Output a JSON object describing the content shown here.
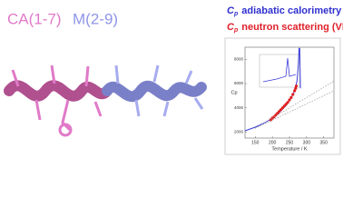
{
  "title_parts": [
    "CA(1-7)",
    "M(2-9)"
  ],
  "legend": [
    {
      "symbol": "C",
      "sub": "p",
      "text": "adiabatic calorimetry",
      "color": "#2f2fd0"
    },
    {
      "symbol": "C",
      "sub": "p",
      "text": "neutron scattering (VDOS)",
      "color": "#e0202a"
    }
  ],
  "chart_data": {
    "type": "line",
    "xlabel": "Temperature / K",
    "ylabel": "Cp",
    "xlim": [
      120,
      380
    ],
    "xticks": [
      150,
      200,
      250,
      300,
      350
    ],
    "ylim": [
      1500,
      9000
    ],
    "yticks": [
      2000,
      4000,
      6000,
      8000
    ],
    "series": [
      {
        "color": "#3a3ad8",
        "style": "line",
        "x": [
          120,
          150,
          180,
          200,
          220,
          240,
          255,
          265,
          272,
          276,
          278,
          280,
          282
        ],
        "values": [
          2100,
          2400,
          2800,
          3150,
          3600,
          4200,
          4800,
          5400,
          6200,
          7600,
          8900,
          8900,
          5600
        ]
      },
      {
        "color": "#e02020",
        "style": "points",
        "x": [
          195,
          200,
          205,
          210,
          215,
          220,
          225,
          230,
          235,
          240,
          245,
          250,
          255,
          260,
          265,
          268,
          270
        ],
        "values": [
          3000,
          3150,
          3250,
          3400,
          3550,
          3700,
          3850,
          4000,
          4150,
          4300,
          4450,
          4650,
          4850,
          5100,
          5400,
          5600,
          5800
        ]
      },
      {
        "color": "#888888",
        "style": "dashed",
        "x": [
          150,
          380
        ],
        "values": [
          2300,
          6200
        ]
      },
      {
        "color": "#888888",
        "style": "dashed",
        "x": [
          150,
          380
        ],
        "values": [
          2300,
          5400
        ]
      }
    ]
  }
}
